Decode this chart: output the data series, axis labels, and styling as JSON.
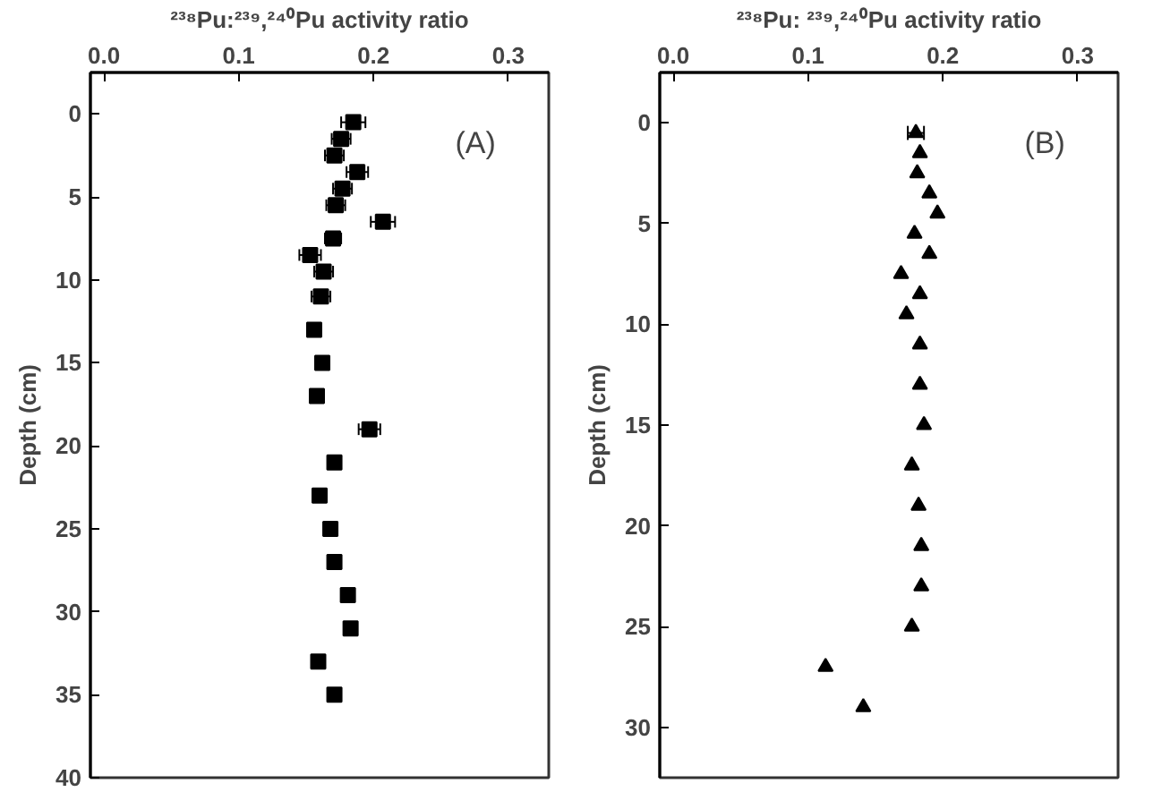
{
  "chart_data": [
    {
      "type": "scatter",
      "xlabel": "²³⁸Pu:²³⁹,²⁴⁰Pu activity ratio",
      "ylabel": "Depth (cm)",
      "marker": "square",
      "grid": false,
      "xlim": [
        -0.01,
        0.33
      ],
      "xticks": [
        {
          "value": 0,
          "label": "0.0"
        },
        0.1,
        0.2,
        0.3
      ],
      "ylim": [
        40,
        -2.5
      ],
      "yticks": [
        0,
        5,
        10,
        15,
        20,
        25,
        30,
        35,
        40
      ],
      "annotations": [
        "(A)"
      ],
      "series": [
        {
          "color": "#000000",
          "x": [
            0.185,
            0.176,
            0.171,
            0.188,
            0.177,
            0.172,
            0.207,
            0.17,
            0.153,
            0.163,
            0.161,
            0.156,
            0.162,
            0.158,
            0.197,
            0.171,
            0.16,
            0.168,
            0.171,
            0.181,
            0.183,
            0.159,
            0.171
          ],
          "values": [
            0.5,
            1.5,
            2.5,
            3.5,
            4.5,
            5.5,
            6.5,
            7.5,
            8.5,
            9.5,
            11,
            13,
            15,
            17,
            19,
            21,
            23,
            25,
            27,
            29,
            31,
            33,
            35
          ],
          "xerrors": [
            0.009,
            0.007,
            0.007,
            0.008,
            0.007,
            0.007,
            0.009,
            0.006,
            0.008,
            0.007,
            0.007,
            null,
            null,
            null,
            0.008,
            null,
            null,
            null,
            null,
            null,
            null,
            null,
            null
          ]
        }
      ]
    },
    {
      "type": "scatter",
      "xlabel": "²³⁸Pu: ²³⁹,²⁴⁰Pu activity ratio",
      "ylabel": "Depth (cm)",
      "marker": "triangle",
      "grid": false,
      "xlim": [
        -0.01,
        0.33
      ],
      "xticks": [
        {
          "value": 0,
          "label": "0.0"
        },
        0.1,
        0.2,
        0.3
      ],
      "ylim": [
        32.5,
        -2.5
      ],
      "yticks": [
        0,
        5,
        10,
        15,
        20,
        25,
        30
      ],
      "annotations": [
        "(B)"
      ],
      "series": [
        {
          "color": "#000000",
          "x": [
            0.18,
            0.183,
            0.181,
            0.19,
            0.196,
            0.179,
            0.19,
            0.169,
            0.183,
            0.173,
            0.183,
            0.183,
            0.186,
            0.177,
            0.182,
            0.184,
            0.184,
            0.177,
            0.113,
            0.141
          ],
          "values": [
            0.5,
            1.5,
            2.5,
            3.5,
            4.5,
            5.5,
            6.5,
            7.5,
            8.5,
            9.5,
            11,
            13,
            15,
            17,
            19,
            21,
            23,
            25,
            27,
            29
          ],
          "xerrors": [
            0.006,
            null,
            null,
            null,
            null,
            null,
            null,
            null,
            null,
            null,
            null,
            null,
            null,
            null,
            null,
            null,
            null,
            null,
            null,
            null
          ]
        }
      ]
    }
  ]
}
